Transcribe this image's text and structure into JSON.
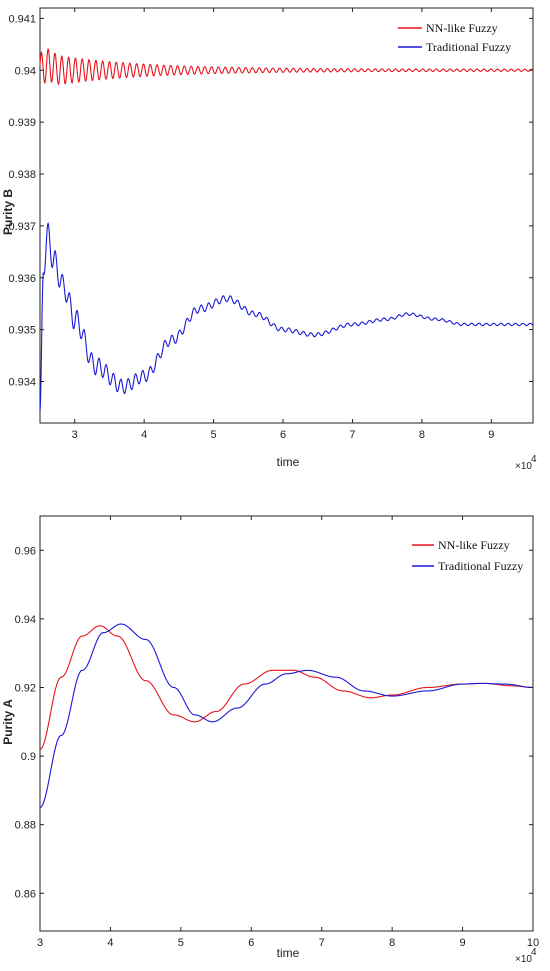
{
  "chart_data": [
    {
      "type": "line",
      "xlabel": "time",
      "ylabel": "Purity B",
      "x_multiplier": "×10",
      "x_multiplier_exp": "4",
      "xlim": [
        2.5,
        9.6
      ],
      "ylim": [
        0.9332,
        0.9412
      ],
      "xticks": [
        "3",
        "4",
        "5",
        "6",
        "7",
        "8",
        "9"
      ],
      "yticks": [
        "0.934",
        "0.935",
        "0.936",
        "0.937",
        "0.938",
        "0.939",
        "0.94",
        "0.941"
      ],
      "legend_position": "top-right",
      "series": [
        {
          "name": "NN-like Fuzzy",
          "color": "#e8141c",
          "x": [
            2.5,
            2.6,
            2.8,
            3.0,
            3.4,
            3.8,
            4.2,
            4.6,
            5.0,
            5.5,
            6.0,
            7.0,
            8.0,
            9.0,
            9.6
          ],
          "y": [
            0.94,
            0.9401,
            0.94,
            0.94,
            0.94,
            0.94,
            0.94,
            0.94,
            0.94,
            0.94,
            0.94,
            0.94,
            0.94,
            0.94,
            0.94
          ]
        },
        {
          "name": "Traditional Fuzzy",
          "color": "#1a1ad8",
          "x": [
            2.5,
            2.55,
            2.62,
            2.7,
            2.85,
            3.0,
            3.3,
            3.7,
            4.0,
            4.4,
            4.8,
            5.2,
            5.6,
            6.0,
            6.45,
            7.0,
            7.5,
            7.8,
            8.2,
            8.6,
            9.0,
            9.6
          ],
          "y": [
            0.9332,
            0.9363,
            0.9368,
            0.9363,
            0.9358,
            0.9352,
            0.9343,
            0.9339,
            0.9341,
            0.9348,
            0.9354,
            0.9356,
            0.9353,
            0.935,
            0.9349,
            0.9351,
            0.9352,
            0.9353,
            0.9352,
            0.9351,
            0.9351,
            0.9351
          ]
        }
      ]
    },
    {
      "type": "line",
      "xlabel": "time",
      "ylabel": "Purity A",
      "x_multiplier": "×10",
      "x_multiplier_exp": "4",
      "xlim": [
        3,
        10
      ],
      "ylim": [
        0.849,
        0.97
      ],
      "xticks": [
        "3",
        "4",
        "5",
        "6",
        "7",
        "8",
        "9",
        "10"
      ],
      "yticks": [
        "0.86",
        "0.88",
        "0.9",
        "0.92",
        "0.94",
        "0.96"
      ],
      "legend_position": "top-right",
      "series": [
        {
          "name": "NN-like Fuzzy",
          "color": "#e8141c",
          "x": [
            3.0,
            3.3,
            3.6,
            3.85,
            4.1,
            4.5,
            4.9,
            5.2,
            5.5,
            5.9,
            6.3,
            6.6,
            6.9,
            7.3,
            7.7,
            8.0,
            8.5,
            9.0,
            9.3,
            9.7,
            10.0
          ],
          "y": [
            0.902,
            0.923,
            0.935,
            0.938,
            0.935,
            0.922,
            0.912,
            0.91,
            0.913,
            0.921,
            0.925,
            0.925,
            0.923,
            0.919,
            0.917,
            0.9178,
            0.92,
            0.921,
            0.9212,
            0.9205,
            0.92
          ]
        },
        {
          "name": "Traditional Fuzzy",
          "color": "#1a1ad8",
          "x": [
            3.0,
            3.3,
            3.6,
            3.9,
            4.15,
            4.5,
            4.9,
            5.2,
            5.45,
            5.8,
            6.2,
            6.5,
            6.8,
            7.2,
            7.6,
            8.0,
            8.5,
            9.0,
            9.25,
            9.6,
            10.0
          ],
          "y": [
            0.885,
            0.906,
            0.925,
            0.936,
            0.9385,
            0.934,
            0.92,
            0.912,
            0.91,
            0.914,
            0.921,
            0.924,
            0.925,
            0.923,
            0.919,
            0.9175,
            0.919,
            0.921,
            0.9212,
            0.921,
            0.92
          ]
        }
      ]
    }
  ]
}
